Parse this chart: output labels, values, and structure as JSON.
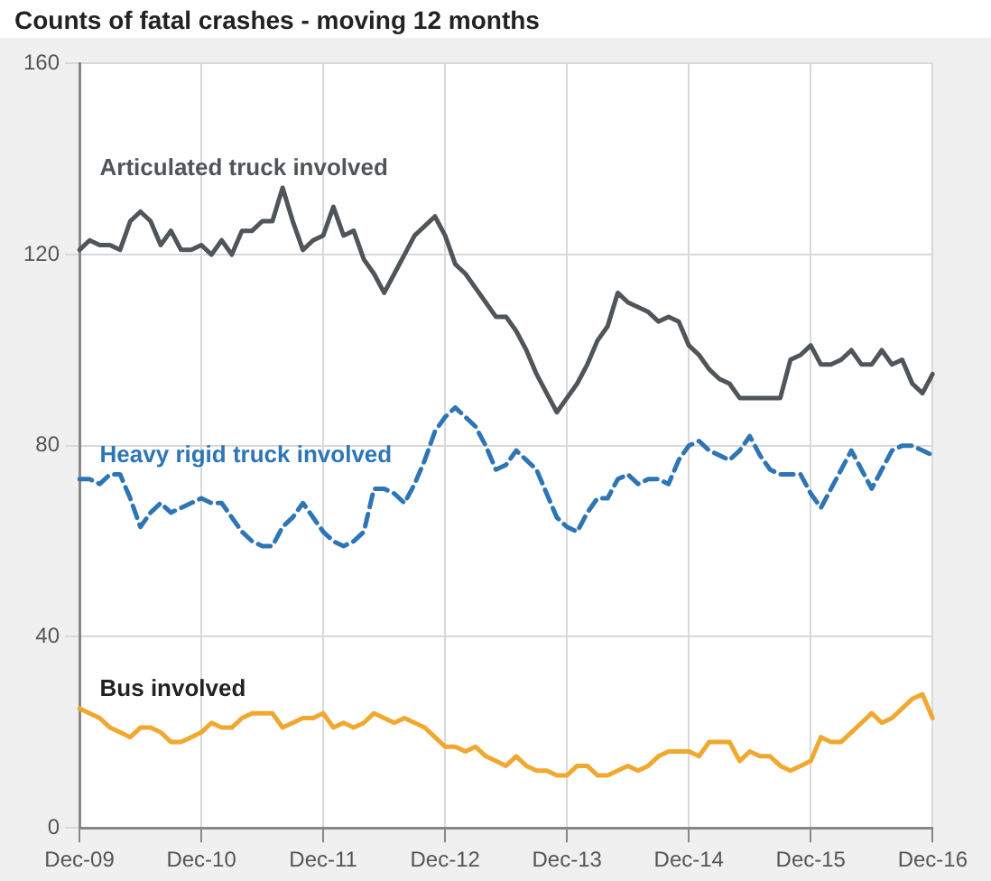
{
  "chart_data": {
    "type": "line",
    "title": "Counts of fatal crashes - moving 12 months",
    "categories": [
      "Dec-09",
      null,
      null,
      null,
      null,
      null,
      null,
      null,
      null,
      null,
      null,
      null,
      "Dec-10",
      null,
      null,
      null,
      null,
      null,
      null,
      null,
      null,
      null,
      null,
      null,
      "Dec-11",
      null,
      null,
      null,
      null,
      null,
      null,
      null,
      null,
      null,
      null,
      null,
      "Dec-12",
      null,
      null,
      null,
      null,
      null,
      null,
      null,
      null,
      null,
      null,
      null,
      "Dec-13",
      null,
      null,
      null,
      null,
      null,
      null,
      null,
      null,
      null,
      null,
      null,
      "Dec-14",
      null,
      null,
      null,
      null,
      null,
      null,
      null,
      null,
      null,
      null,
      null,
      "Dec-15",
      null,
      null,
      null,
      null,
      null,
      null,
      null,
      null,
      null,
      null,
      null,
      "Dec-16"
    ],
    "series": [
      {
        "name": "Articulated truck involved",
        "color": "#50555a",
        "line_style": "solid",
        "values": [
          121,
          123,
          122,
          122,
          121,
          127,
          129,
          127,
          122,
          125,
          121,
          121,
          122,
          120,
          123,
          120,
          125,
          125,
          127,
          127,
          134,
          127,
          121,
          123,
          124,
          130,
          124,
          125,
          119,
          116,
          112,
          116,
          120,
          124,
          126,
          128,
          124,
          118,
          116,
          113,
          110,
          107,
          107,
          104,
          100,
          95,
          91,
          87,
          90,
          93,
          97,
          102,
          105,
          112,
          110,
          109,
          108,
          106,
          107,
          106,
          101,
          99,
          96,
          94,
          93,
          90,
          90,
          90,
          90,
          90,
          98,
          99,
          101,
          97,
          97,
          98,
          100,
          97,
          97,
          100,
          97,
          98,
          93,
          91,
          95
        ]
      },
      {
        "name": "Heavy rigid truck involved",
        "color": "#2e75b6",
        "line_style": "dashed",
        "values": [
          73,
          73,
          72,
          74,
          74,
          69,
          63,
          66,
          68,
          66,
          67,
          68,
          69,
          68,
          68,
          65,
          62,
          60,
          59,
          59,
          63,
          65,
          68,
          65,
          62,
          60,
          59,
          60,
          62,
          71,
          71,
          70,
          68,
          72,
          77,
          83,
          86,
          88,
          86,
          84,
          80,
          75,
          76,
          79,
          77,
          75,
          70,
          65,
          63,
          62,
          66,
          69,
          69,
          73,
          74,
          72,
          73,
          73,
          72,
          77,
          80,
          81,
          79,
          78,
          77,
          79,
          82,
          78,
          75,
          74,
          74,
          74,
          70,
          67,
          71,
          75,
          79,
          75,
          71,
          75,
          79,
          80,
          80,
          79,
          78
        ]
      },
      {
        "name": "Bus involved",
        "color": "#f0a830",
        "line_style": "solid",
        "values": [
          25,
          24,
          23,
          21,
          20,
          19,
          21,
          21,
          20,
          18,
          18,
          19,
          20,
          22,
          21,
          21,
          23,
          24,
          24,
          24,
          21,
          22,
          23,
          23,
          24,
          21,
          22,
          21,
          22,
          24,
          23,
          22,
          23,
          22,
          21,
          19,
          17,
          17,
          16,
          17,
          15,
          14,
          13,
          15,
          13,
          12,
          12,
          11,
          11,
          13,
          13,
          11,
          11,
          12,
          13,
          12,
          13,
          15,
          16,
          16,
          16,
          15,
          18,
          18,
          18,
          14,
          16,
          15,
          15,
          13,
          12,
          13,
          14,
          19,
          18,
          18,
          20,
          22,
          24,
          22,
          23,
          25,
          27,
          28,
          23
        ]
      }
    ],
    "ylim": [
      0,
      160
    ],
    "yticks": [
      0,
      40,
      80,
      120,
      160
    ],
    "grid": true,
    "legend": false,
    "marker": "none"
  }
}
